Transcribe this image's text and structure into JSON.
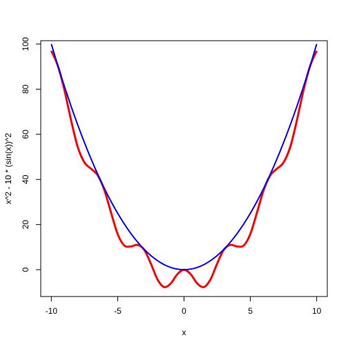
{
  "chart_data": {
    "type": "line",
    "xlabel": "x",
    "ylabel": "x^2 - 10 * (sin(x))^2",
    "x": [
      -10,
      -9.5,
      -9,
      -8.5,
      -8,
      -7.5,
      -7,
      -6.5,
      -6,
      -5.5,
      -5,
      -4.5,
      -4,
      -3.5,
      -3,
      -2.5,
      -2,
      -1.5,
      -1,
      -0.5,
      0,
      0.5,
      1,
      1.5,
      2,
      2.5,
      3,
      3.5,
      4,
      4.5,
      5,
      5.5,
      6,
      6.5,
      7,
      7.5,
      8,
      8.5,
      9,
      9.5,
      10
    ],
    "series": [
      {
        "color": "#ff0000",
        "values": [
          97.0,
          90.2,
          79.3,
          65.9,
          54.2,
          47.5,
          44.7,
          41.8,
          35.2,
          25.3,
          15.8,
          10.7,
          10.3,
          11.0,
          8.8,
          2.7,
          -4.3,
          -7.7,
          -6.1,
          -2.0,
          0,
          -2.0,
          -6.1,
          -7.7,
          -4.3,
          2.7,
          8.8,
          11.0,
          10.3,
          10.7,
          15.8,
          25.3,
          35.2,
          41.8,
          44.7,
          47.5,
          54.2,
          65.9,
          79.3,
          90.2,
          97.0
        ]
      },
      {
        "color": "#0000ff",
        "values": [
          100,
          90.25,
          81,
          72.25,
          64,
          56.25,
          49,
          42.25,
          36,
          30.25,
          25,
          20.25,
          16,
          12.25,
          9,
          6.25,
          4,
          2.25,
          1,
          0.25,
          0,
          0.25,
          1,
          2.25,
          4,
          6.25,
          9,
          12.25,
          16,
          20.25,
          25,
          30.25,
          36,
          42.25,
          49,
          56.25,
          64,
          72.25,
          81,
          90.25,
          100
        ]
      }
    ],
    "xlim": [
      -10.8,
      10.8
    ],
    "ylim": [
      -11.9,
      101.5
    ],
    "xticks": [
      -10,
      -5,
      0,
      5,
      10
    ],
    "yticks": [
      0,
      20,
      40,
      60,
      80,
      100
    ]
  }
}
